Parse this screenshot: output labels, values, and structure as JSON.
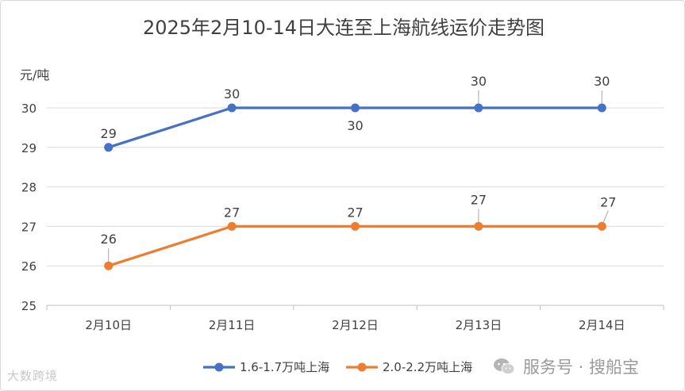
{
  "chart_data": {
    "type": "line",
    "title": "2025年2月10-14日大连至上海航线运价走势图",
    "ylabel": "元/吨",
    "xlabel": "",
    "categories": [
      "2月10日",
      "2月11日",
      "2月12日",
      "2月13日",
      "2月14日"
    ],
    "ylim": [
      25,
      30
    ],
    "yticks": [
      25,
      26,
      27,
      28,
      29,
      30
    ],
    "grid": true,
    "legend_position": "bottom",
    "series": [
      {
        "name": "1.6-1.7万吨上海",
        "color": "#4472c4",
        "values": [
          29,
          30,
          30,
          30,
          30
        ]
      },
      {
        "name": "2.0-2.2万吨上海",
        "color": "#ed7d31",
        "values": [
          26,
          27,
          27,
          27,
          27
        ]
      }
    ]
  },
  "watermarks": {
    "left": "大数跨境",
    "right": "服务号 · 搜船宝"
  }
}
